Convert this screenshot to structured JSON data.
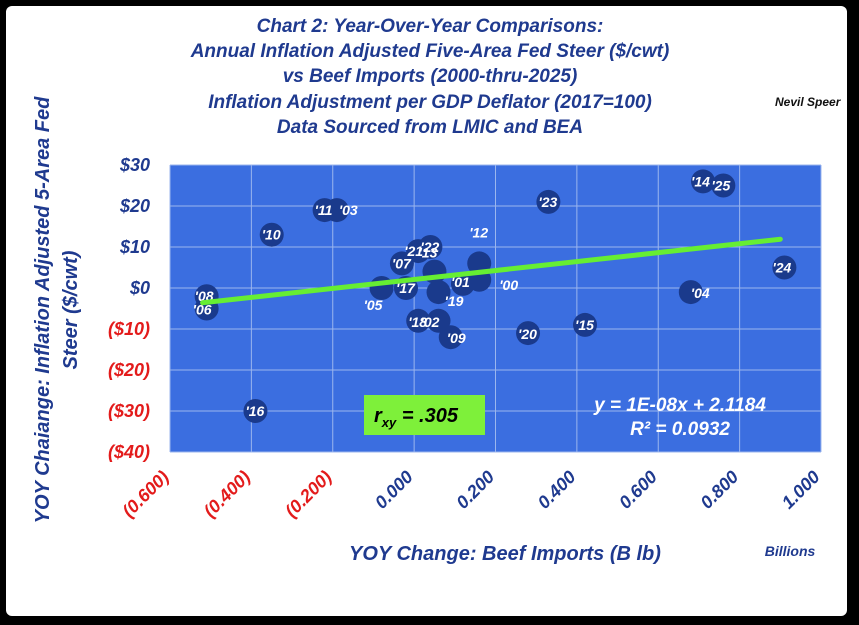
{
  "chart_data": {
    "type": "scatter",
    "title_lines": [
      "Chart 2:  Year-Over-Year Comparisons:",
      "Annual Inflation Adjusted Five-Area Fed Steer ($/cwt)",
      "vs Beef Imports (2000-thru-2025)",
      "Inflation Adjustment per GDP Deflator (2017=100)",
      "Data Sourced from LMIC and BEA"
    ],
    "author": "Nevil Speer",
    "xlabel": "YOY Change:  Beef Imports (B lb)",
    "x_units": "Billions",
    "ylabel_lines": [
      "YOY Chaiange: Inflation Adjusted 5-Area Fed",
      "Steer ($/cwt)"
    ],
    "xlim": [
      -0.6,
      1.0
    ],
    "ylim": [
      -40,
      30
    ],
    "x_ticks": [
      {
        "value": -0.6,
        "label": "(0.600)",
        "color": "#e31b1b"
      },
      {
        "value": -0.4,
        "label": "(0.400)",
        "color": "#e31b1b"
      },
      {
        "value": -0.2,
        "label": "(0.200)",
        "color": "#e31b1b"
      },
      {
        "value": 0.0,
        "label": "0.000",
        "color": "#1f3a8f"
      },
      {
        "value": 0.2,
        "label": "0.200",
        "color": "#1f3a8f"
      },
      {
        "value": 0.4,
        "label": "0.400",
        "color": "#1f3a8f"
      },
      {
        "value": 0.6,
        "label": "0.600",
        "color": "#1f3a8f"
      },
      {
        "value": 0.8,
        "label": "0.800",
        "color": "#1f3a8f"
      },
      {
        "value": 1.0,
        "label": "1.000",
        "color": "#1f3a8f"
      }
    ],
    "y_ticks": [
      {
        "value": 30,
        "label": "$30",
        "color": "#1f3a8f"
      },
      {
        "value": 20,
        "label": "$20",
        "color": "#1f3a8f"
      },
      {
        "value": 10,
        "label": "$10",
        "color": "#1f3a8f"
      },
      {
        "value": 0,
        "label": "$0",
        "color": "#1f3a8f"
      },
      {
        "value": -10,
        "label": "($10)",
        "color": "#e31b1b"
      },
      {
        "value": -20,
        "label": "($20)",
        "color": "#e31b1b"
      },
      {
        "value": -30,
        "label": "($30)",
        "color": "#e31b1b"
      },
      {
        "value": -40,
        "label": "($40)",
        "color": "#e31b1b"
      }
    ],
    "points": [
      {
        "label": "'00",
        "x": 0.16,
        "y": 2
      },
      {
        "label": "'01",
        "x": 0.12,
        "y": 1
      },
      {
        "label": "'02",
        "x": 0.06,
        "y": -8
      },
      {
        "label": "'03",
        "x": -0.19,
        "y": 19
      },
      {
        "label": "'04",
        "x": 0.68,
        "y": -1
      },
      {
        "label": "'05",
        "x": -0.08,
        "y": 0
      },
      {
        "label": "'06",
        "x": -0.51,
        "y": -5
      },
      {
        "label": "'07",
        "x": -0.03,
        "y": 6
      },
      {
        "label": "'08",
        "x": -0.51,
        "y": -2
      },
      {
        "label": "'09",
        "x": 0.09,
        "y": -12
      },
      {
        "label": "'10",
        "x": -0.35,
        "y": 13
      },
      {
        "label": "'11",
        "x": -0.22,
        "y": 19
      },
      {
        "label": "'12",
        "x": 0.16,
        "y": 6
      },
      {
        "label": "'13",
        "x": 0.05,
        "y": 4
      },
      {
        "label": "'14",
        "x": 0.71,
        "y": 26
      },
      {
        "label": "'15",
        "x": 0.42,
        "y": -9
      },
      {
        "label": "'16",
        "x": -0.39,
        "y": -30
      },
      {
        "label": "'17",
        "x": -0.02,
        "y": 0
      },
      {
        "label": "'18",
        "x": 0.01,
        "y": -8
      },
      {
        "label": "'19",
        "x": 0.06,
        "y": -1
      },
      {
        "label": "'20",
        "x": 0.28,
        "y": -11
      },
      {
        "label": "'21",
        "x": 0.01,
        "y": 9
      },
      {
        "label": "'22",
        "x": 0.04,
        "y": 10
      },
      {
        "label": "'23",
        "x": 0.33,
        "y": 21
      },
      {
        "label": "'24",
        "x": 0.91,
        "y": 5
      },
      {
        "label": "'25",
        "x": 0.76,
        "y": 25
      }
    ],
    "trendline": {
      "x": [
        -0.52,
        0.9
      ],
      "y": [
        -3.6,
        11.9
      ],
      "equation": "y = 1E-08x + 2.1184",
      "r2": "R² = 0.0932"
    },
    "correlation": {
      "text": "r",
      "subscript": "xy",
      "value": " = .305"
    },
    "grid": true,
    "colors": {
      "plot_bg": "#3b6ee0",
      "grid": "#9bb6ee",
      "marker": "#1a3a8c",
      "trendline": "#66ee33",
      "rxy_box": "#7ef03a",
      "axis_text": "#1f3a8f",
      "negative": "#e31b1b"
    }
  }
}
